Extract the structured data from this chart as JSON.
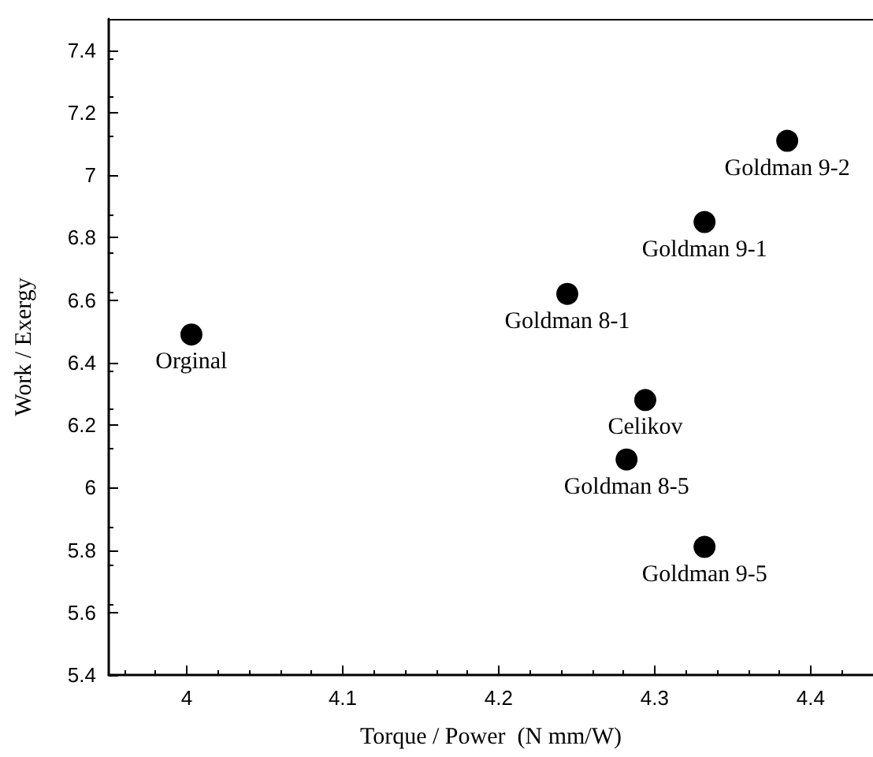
{
  "chart_data": {
    "type": "scatter",
    "xlabel": "Torque / Power  (N mm/W)",
    "ylabel": "Work / Exergy",
    "x": [
      4.003,
      4.244,
      4.332,
      4.385,
      4.294,
      4.282,
      4.332
    ],
    "series": [
      {
        "color": "#000000",
        "values": [
          6.49,
          6.62,
          6.85,
          7.11,
          6.28,
          6.09,
          5.81
        ]
      }
    ],
    "annotations": [
      {
        "text": "Orginal",
        "x": 4.003,
        "y": 6.49
      },
      {
        "text": "Goldman 8-1",
        "x": 4.244,
        "y": 6.62
      },
      {
        "text": "Goldman 9-1",
        "x": 4.332,
        "y": 6.85
      },
      {
        "text": "Goldman 9-2",
        "x": 4.385,
        "y": 7.11
      },
      {
        "text": "Celikov",
        "x": 4.294,
        "y": 6.28
      },
      {
        "text": "Goldman 8-5",
        "x": 4.282,
        "y": 6.09
      },
      {
        "text": "Goldman 9-5",
        "x": 4.332,
        "y": 5.81
      }
    ],
    "xlim": [
      3.95,
      4.44
    ],
    "xticks": [
      4,
      4.1,
      4.2,
      4.3,
      4.4
    ],
    "ylim": [
      5.4,
      7.5
    ],
    "yticks": [
      5.4,
      5.6,
      5.8,
      6,
      6.2,
      6.4,
      6.6,
      6.8,
      7,
      7.2,
      7.4
    ],
    "marker": "circle"
  }
}
